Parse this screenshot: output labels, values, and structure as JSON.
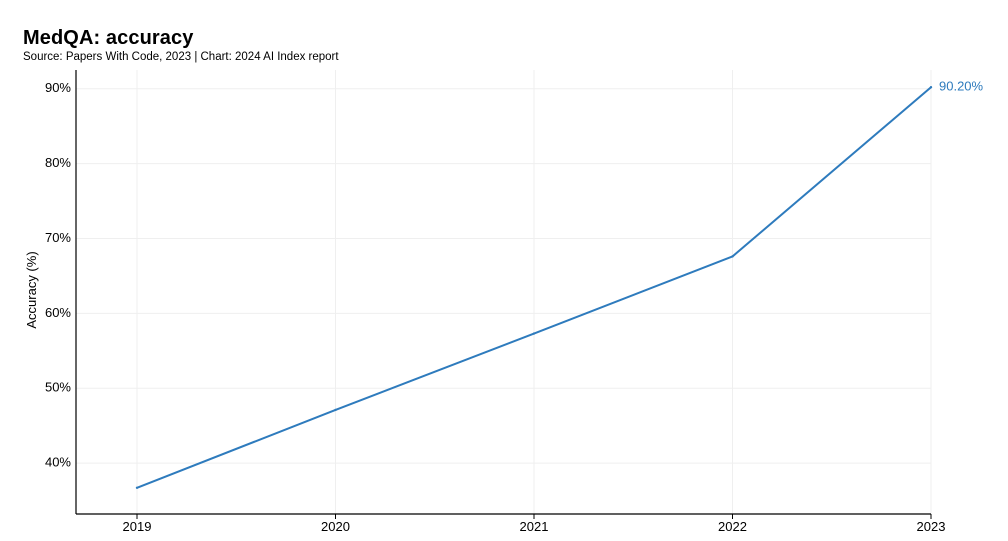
{
  "chart_data": {
    "type": "line",
    "title": "MedQA: accuracy",
    "subtitle": "Source: Papers With Code, 2023 | Chart: 2024 AI Index report",
    "xlabel": "",
    "ylabel": "Accuracy (%)",
    "x": [
      "2019",
      "2020",
      "2021",
      "2022",
      "2023"
    ],
    "series": [
      {
        "values": [
          36.7,
          47.1,
          57.3,
          67.6,
          90.2
        ],
        "color": "#2e7bbd"
      }
    ],
    "end_label": "90.20%",
    "y_ticks": [
      40,
      50,
      60,
      70,
      80,
      90
    ],
    "y_tick_labels": [
      "40%",
      "50%",
      "60%",
      "70%",
      "80%",
      "90%"
    ],
    "ylim": [
      33.2,
      92.5
    ],
    "grid": true,
    "legend": "none"
  }
}
